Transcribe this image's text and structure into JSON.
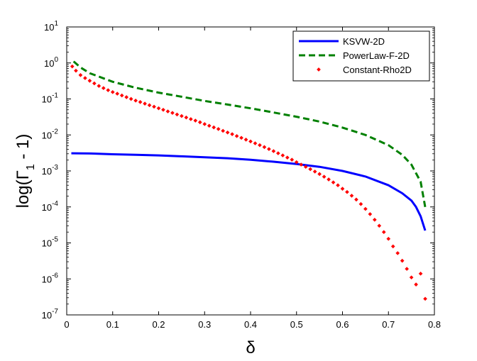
{
  "chart_data": {
    "type": "line",
    "xlabel": "δ",
    "ylabel": {
      "main": "log(Γ",
      "sub": "1",
      "tail": " - 1)"
    },
    "xlim": [
      0,
      0.8
    ],
    "ylim_log10": [
      -7,
      1
    ],
    "y_scale": "log",
    "grid": false,
    "legend_position": "top-right",
    "x_ticks": [
      {
        "value": 0,
        "label": "0"
      },
      {
        "value": 0.1,
        "label": "0.1"
      },
      {
        "value": 0.2,
        "label": "0.2"
      },
      {
        "value": 0.3,
        "label": "0.3"
      },
      {
        "value": 0.4,
        "label": "0.4"
      },
      {
        "value": 0.5,
        "label": "0.5"
      },
      {
        "value": 0.6,
        "label": "0.6"
      },
      {
        "value": 0.7,
        "label": "0.7"
      },
      {
        "value": 0.8,
        "label": "0.8"
      }
    ],
    "y_ticks": [
      {
        "exp": 1,
        "base": "10",
        "sup": "1"
      },
      {
        "exp": 0,
        "base": "10",
        "sup": "0"
      },
      {
        "exp": -1,
        "base": "10",
        "sup": "-1"
      },
      {
        "exp": -2,
        "base": "10",
        "sup": "-2"
      },
      {
        "exp": -3,
        "base": "10",
        "sup": "-3"
      },
      {
        "exp": -4,
        "base": "10",
        "sup": "-4"
      },
      {
        "exp": -5,
        "base": "10",
        "sup": "-5"
      },
      {
        "exp": -6,
        "base": "10",
        "sup": "-6"
      },
      {
        "exp": -7,
        "base": "10",
        "sup": "-7"
      }
    ],
    "series": [
      {
        "name": "KSVW-2D",
        "style": "solid",
        "color": "#0000ff",
        "points": [
          [
            0.01,
            0.0031
          ],
          [
            0.05,
            0.00305
          ],
          [
            0.1,
            0.0029
          ],
          [
            0.15,
            0.0028
          ],
          [
            0.2,
            0.0027
          ],
          [
            0.25,
            0.00255
          ],
          [
            0.3,
            0.0024
          ],
          [
            0.35,
            0.00225
          ],
          [
            0.4,
            0.00205
          ],
          [
            0.45,
            0.0018
          ],
          [
            0.5,
            0.00155
          ],
          [
            0.55,
            0.0013
          ],
          [
            0.6,
            0.001
          ],
          [
            0.65,
            0.0007
          ],
          [
            0.7,
            0.0004
          ],
          [
            0.73,
            0.00024
          ],
          [
            0.75,
            0.00015
          ],
          [
            0.76,
            0.0001
          ],
          [
            0.77,
            5.5e-05
          ],
          [
            0.78,
            2.2e-05
          ]
        ]
      },
      {
        "name": "PowerLaw-F-2D",
        "style": "dashed",
        "color": "#008000",
        "points": [
          [
            0.015,
            1.1
          ],
          [
            0.03,
            0.75
          ],
          [
            0.05,
            0.52
          ],
          [
            0.1,
            0.3
          ],
          [
            0.15,
            0.205
          ],
          [
            0.2,
            0.15
          ],
          [
            0.25,
            0.115
          ],
          [
            0.3,
            0.088
          ],
          [
            0.35,
            0.07
          ],
          [
            0.4,
            0.055
          ],
          [
            0.45,
            0.042
          ],
          [
            0.5,
            0.032
          ],
          [
            0.55,
            0.0235
          ],
          [
            0.6,
            0.016
          ],
          [
            0.65,
            0.01
          ],
          [
            0.7,
            0.0052
          ],
          [
            0.73,
            0.0028
          ],
          [
            0.75,
            0.0015
          ],
          [
            0.77,
            0.0005
          ],
          [
            0.78,
            0.0001
          ]
        ]
      },
      {
        "name": "Constant-Rho2D",
        "style": "dotted",
        "color": "#ff0000",
        "points": [
          [
            0.012,
            0.8
          ],
          [
            0.02,
            0.61
          ],
          [
            0.03,
            0.46
          ],
          [
            0.04,
            0.38
          ],
          [
            0.05,
            0.32
          ],
          [
            0.06,
            0.27
          ],
          [
            0.07,
            0.23
          ],
          [
            0.08,
            0.2
          ],
          [
            0.09,
            0.175
          ],
          [
            0.1,
            0.155
          ],
          [
            0.11,
            0.14
          ],
          [
            0.12,
            0.125
          ],
          [
            0.13,
            0.112
          ],
          [
            0.14,
            0.1
          ],
          [
            0.15,
            0.09
          ],
          [
            0.16,
            0.082
          ],
          [
            0.17,
            0.074
          ],
          [
            0.18,
            0.067
          ],
          [
            0.19,
            0.061
          ],
          [
            0.2,
            0.055
          ],
          [
            0.21,
            0.05
          ],
          [
            0.22,
            0.045
          ],
          [
            0.23,
            0.041
          ],
          [
            0.24,
            0.037
          ],
          [
            0.25,
            0.0335
          ],
          [
            0.26,
            0.0305
          ],
          [
            0.27,
            0.0275
          ],
          [
            0.28,
            0.025
          ],
          [
            0.29,
            0.0225
          ],
          [
            0.3,
            0.02
          ],
          [
            0.31,
            0.018
          ],
          [
            0.32,
            0.0162
          ],
          [
            0.33,
            0.0146
          ],
          [
            0.34,
            0.013
          ],
          [
            0.35,
            0.0117
          ],
          [
            0.36,
            0.0105
          ],
          [
            0.37,
            0.0093
          ],
          [
            0.38,
            0.0083
          ],
          [
            0.39,
            0.0074
          ],
          [
            0.4,
            0.0066
          ],
          [
            0.41,
            0.00585
          ],
          [
            0.42,
            0.0052
          ],
          [
            0.43,
            0.0046
          ],
          [
            0.44,
            0.00405
          ],
          [
            0.45,
            0.00355
          ],
          [
            0.46,
            0.0031
          ],
          [
            0.47,
            0.0027
          ],
          [
            0.48,
            0.00235
          ],
          [
            0.49,
            0.00205
          ],
          [
            0.5,
            0.00175
          ],
          [
            0.51,
            0.0015
          ],
          [
            0.52,
            0.0013
          ],
          [
            0.53,
            0.00112
          ],
          [
            0.54,
            0.00096
          ],
          [
            0.55,
            0.00082
          ],
          [
            0.56,
            0.00069
          ],
          [
            0.57,
            0.00058
          ],
          [
            0.58,
            0.00048
          ],
          [
            0.59,
            0.0004
          ],
          [
            0.6,
            0.00032
          ],
          [
            0.61,
            0.00026
          ],
          [
            0.62,
            0.000205
          ],
          [
            0.63,
            0.00016
          ],
          [
            0.64,
            0.00012
          ],
          [
            0.65,
            8.8e-05
          ],
          [
            0.66,
            6.3e-05
          ],
          [
            0.67,
            4.4e-05
          ],
          [
            0.68,
            3e-05
          ],
          [
            0.69,
            2e-05
          ],
          [
            0.7,
            1.3e-05
          ],
          [
            0.71,
            8e-06
          ],
          [
            0.72,
            5.2e-06
          ],
          [
            0.73,
            3.2e-06
          ],
          [
            0.74,
            1.9e-06
          ],
          [
            0.75,
            1.1e-06
          ],
          [
            0.76,
            7e-07
          ],
          [
            0.77,
            1.4e-06
          ],
          [
            0.78,
            2.8e-07
          ]
        ]
      }
    ]
  }
}
